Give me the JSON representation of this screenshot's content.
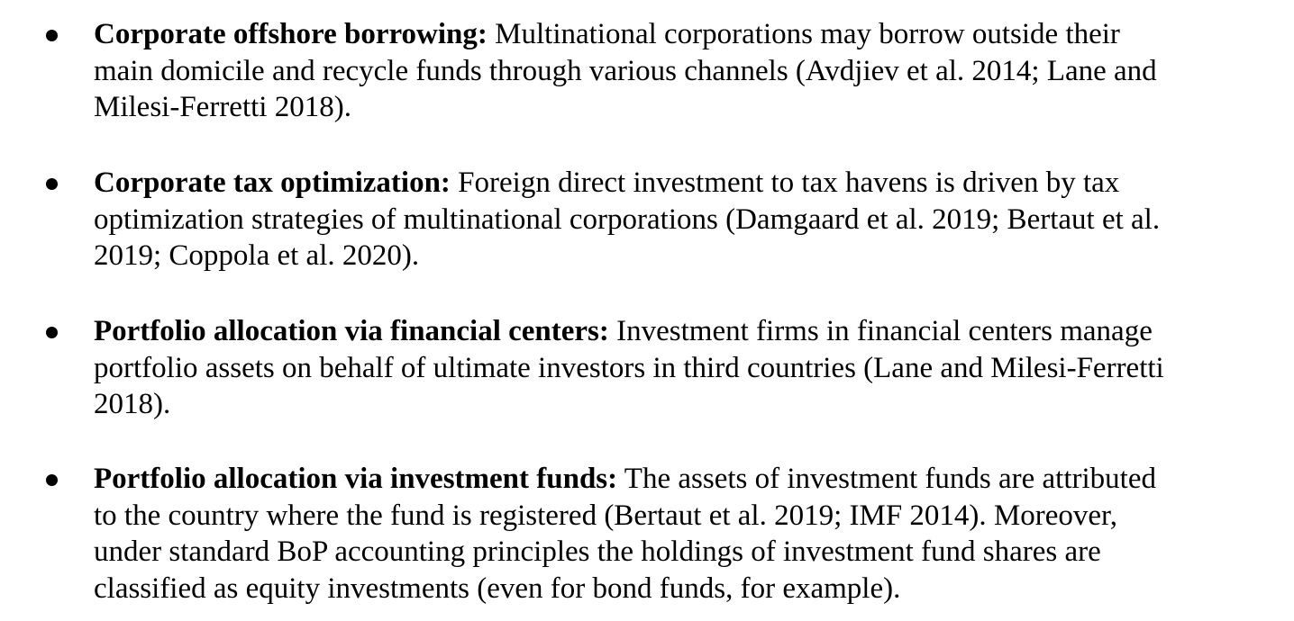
{
  "bullets": [
    {
      "term": "Corporate offshore borrowing:",
      "lines": [
        " Multinational corporations may borrow outside their",
        "main domicile and recycle funds through various channels (Avdjiev et al. 2014; Lane and",
        "Milesi-Ferretti 2018)."
      ]
    },
    {
      "term": "Corporate tax optimization:",
      "lines": [
        " Foreign direct investment to tax havens is driven by tax",
        "optimization strategies of multinational corporations (Damgaard et al. 2019; Bertaut et al.",
        "2019; Coppola et al. 2020)."
      ]
    },
    {
      "term": "Portfolio allocation via financial centers:",
      "lines": [
        " Investment firms in financial centers manage",
        "portfolio assets on behalf of ultimate investors in third countries (Lane and Milesi-Ferretti",
        "2018)."
      ]
    },
    {
      "term": "Portfolio allocation via investment funds:",
      "lines": [
        "  The assets of investment funds are attributed",
        "to the country where the fund is registered (Bertaut et al. 2019; IMF 2014). Moreover,",
        "under standard BoP accounting principles the holdings of investment fund shares are",
        "classified as equity investments (even for bond funds, for example)."
      ]
    }
  ]
}
